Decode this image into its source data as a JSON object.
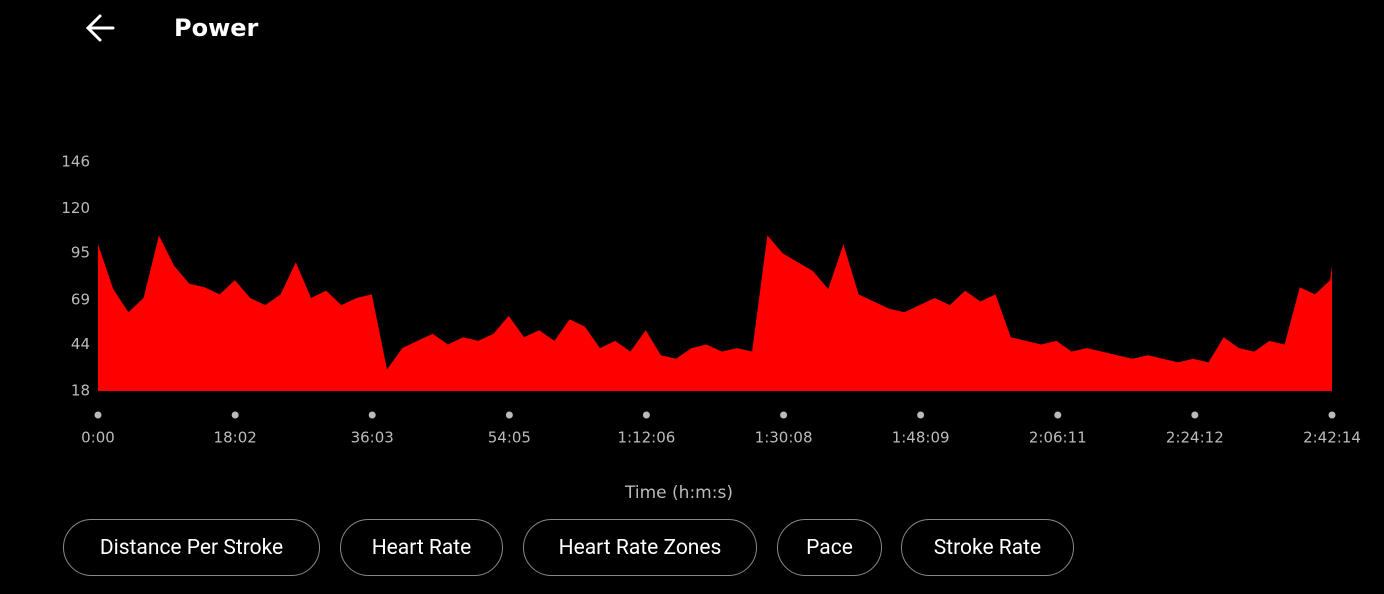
{
  "header": {
    "title": "Power"
  },
  "chart_data": {
    "type": "area",
    "color": "#ff0000",
    "x_label": "Time (h:m:s)",
    "x": [
      0,
      120,
      240,
      360,
      480,
      600,
      720,
      840,
      960,
      1080,
      1200,
      1320,
      1440,
      1560,
      1680,
      1800,
      1920,
      2040,
      2160,
      2280,
      2400,
      2520,
      2640,
      2760,
      2880,
      3000,
      3120,
      3240,
      3360,
      3480,
      3600,
      3720,
      3840,
      3960,
      4080,
      4200,
      4320,
      4440,
      4560,
      4680,
      4800,
      4920,
      5040,
      5160,
      5280,
      5400,
      5520,
      5640,
      5760,
      5880,
      6000,
      6120,
      6240,
      6360,
      6480,
      6600,
      6720,
      6840,
      6960,
      7080,
      7200,
      7320,
      7440,
      7560,
      7680,
      7800,
      7920,
      8040,
      8160,
      8280,
      8400,
      8520,
      8640,
      8760,
      8880,
      9000,
      9120,
      9240,
      9360,
      9480,
      9600,
      9720,
      9734
    ],
    "values": [
      100,
      75,
      62,
      70,
      105,
      88,
      78,
      76,
      72,
      80,
      70,
      66,
      72,
      90,
      70,
      74,
      66,
      70,
      72,
      30,
      42,
      46,
      50,
      44,
      48,
      46,
      50,
      60,
      48,
      52,
      46,
      58,
      54,
      42,
      46,
      40,
      52,
      38,
      36,
      42,
      44,
      40,
      42,
      40,
      105,
      95,
      90,
      85,
      75,
      100,
      72,
      68,
      64,
      62,
      66,
      70,
      66,
      74,
      68,
      72,
      48,
      46,
      44,
      46,
      40,
      42,
      40,
      38,
      36,
      38,
      36,
      34,
      36,
      34,
      48,
      42,
      40,
      46,
      44,
      76,
      72,
      80,
      88
    ],
    "xlim": [
      0,
      9734
    ],
    "xticks": [
      {
        "value": 0,
        "label": "0:00"
      },
      {
        "value": 1082,
        "label": "18:02"
      },
      {
        "value": 2163,
        "label": "36:03"
      },
      {
        "value": 3245,
        "label": "54:05"
      },
      {
        "value": 4326,
        "label": "1:12:06"
      },
      {
        "value": 5408,
        "label": "1:30:08"
      },
      {
        "value": 6489,
        "label": "1:48:09"
      },
      {
        "value": 7571,
        "label": "2:06:11"
      },
      {
        "value": 8652,
        "label": "2:24:12"
      },
      {
        "value": 9734,
        "label": "2:42:14"
      }
    ],
    "ylim": [
      18,
      146
    ],
    "yticks": [
      18,
      44,
      69,
      95,
      120,
      146
    ]
  },
  "buttons": [
    "Distance Per Stroke",
    "Heart Rate",
    "Heart Rate Zones",
    "Pace",
    "Stroke Rate"
  ]
}
